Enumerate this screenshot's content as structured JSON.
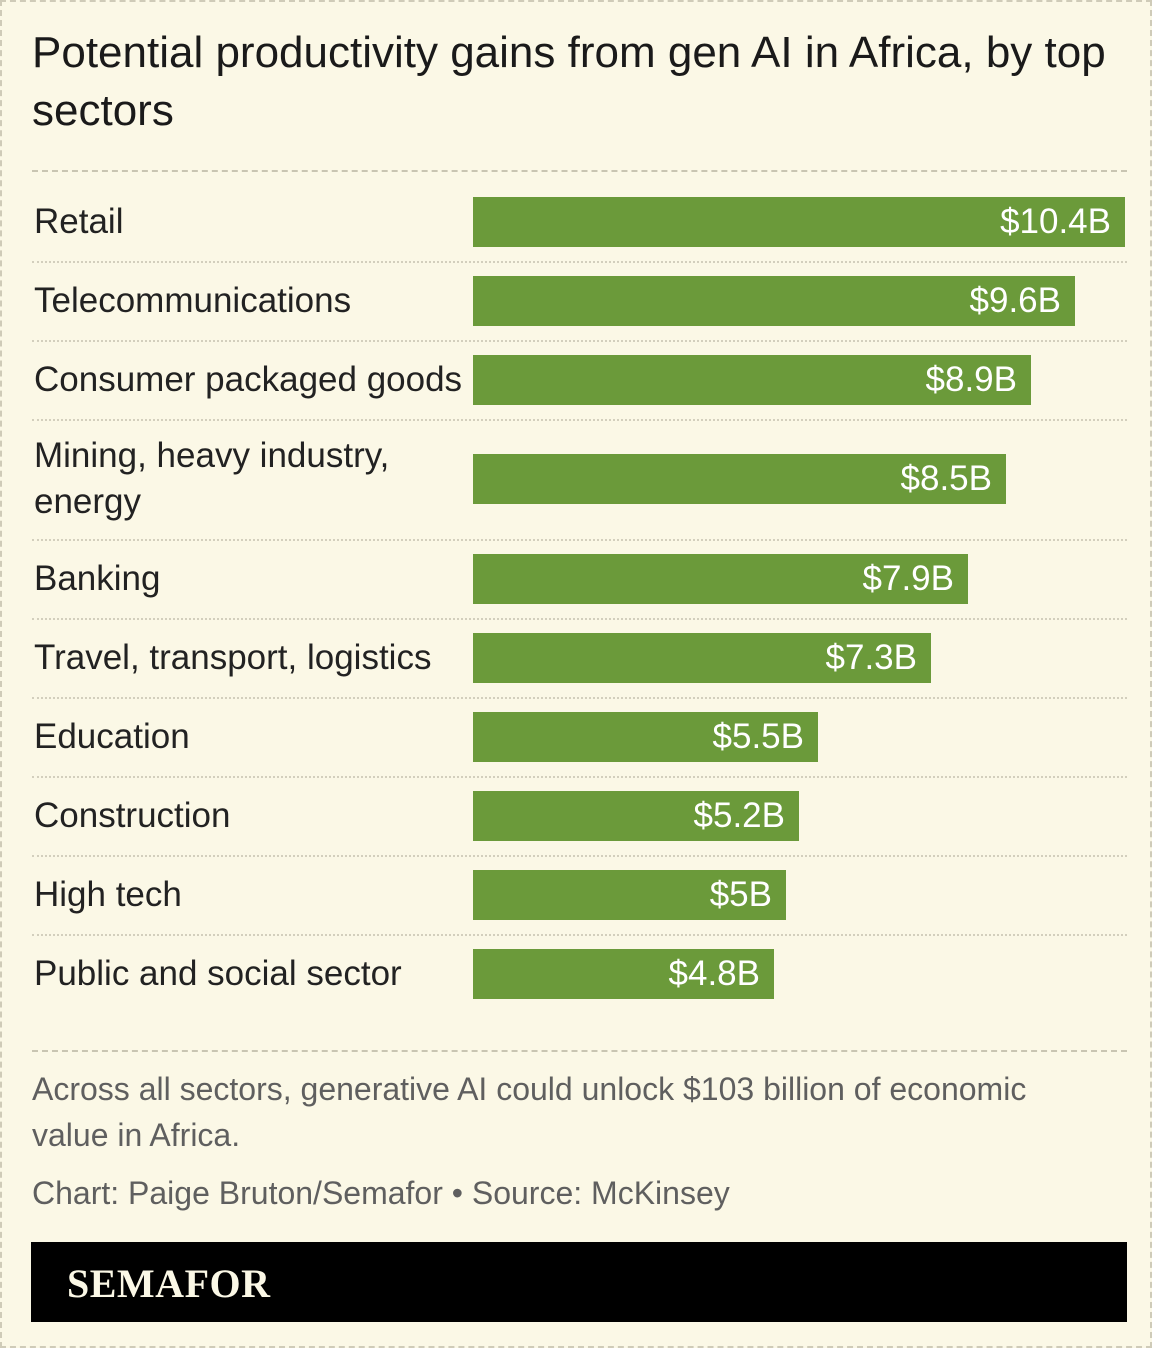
{
  "title": "Potential productivity gains from gen AI in Africa, by top sectors",
  "note": "Across all sectors, generative AI could unlock $103 billion of economic value in Africa.",
  "credit": "Chart: Paige Bruton/Semafor • Source: McKinsey",
  "brand": "SEMAFOR",
  "colors": {
    "bar": "#6b9a3a",
    "background": "#fbf8e6",
    "footer": "#000000"
  },
  "chart_data": {
    "type": "bar",
    "orientation": "horizontal",
    "title": "Potential productivity gains from gen AI in Africa, by top sectors",
    "categories": [
      "Retail",
      "Telecommunications",
      "Consumer packaged goods",
      "Mining, heavy industry, energy",
      "Banking",
      "Travel, transport, logistics",
      "Education",
      "Construction",
      "High tech",
      "Public and social sector"
    ],
    "values": [
      10.4,
      9.6,
      8.9,
      8.5,
      7.9,
      7.3,
      5.5,
      5.2,
      5,
      4.8
    ],
    "value_labels": [
      "$10.4B",
      "$9.6B",
      "$8.9B",
      "$8.5B",
      "$7.9B",
      "$7.3B",
      "$5.5B",
      "$5.2B",
      "$5B",
      "$4.8B"
    ],
    "unit": "billion USD",
    "xlim": [
      0,
      10.4
    ],
    "grid": false
  }
}
